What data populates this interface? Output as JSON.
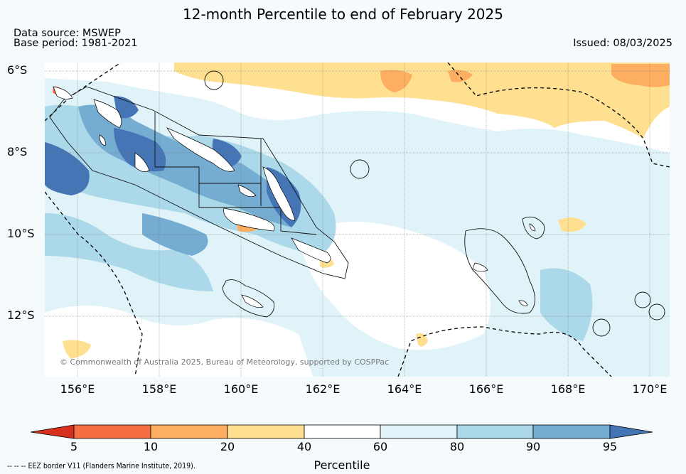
{
  "title": "12-month Percentile to end of February 2025",
  "data_source": "Data source: MSWEP",
  "base_period": "Base period: 1981-2021",
  "issued": "Issued: 08/03/2025",
  "copyright": "© Commonwealth of Australia 2025, Bureau of Meteorology, supported by COSPPac",
  "eez_note": "--  --  -- EEZ border V11 (Flanders Marine Institute, 2019).",
  "lat_labels": [
    "6°S",
    "8°S",
    "10°S",
    "12°S"
  ],
  "lon_labels": [
    "156°E",
    "158°E",
    "160°E",
    "162°E",
    "164°E",
    "166°E",
    "168°E",
    "170°E"
  ],
  "colorbar": {
    "title": "Percentile",
    "ticks": [
      "5",
      "10",
      "20",
      "40",
      "60",
      "80",
      "90",
      "95"
    ],
    "colors": {
      "below_5": "#d7301f",
      "5-10": "#f46d43",
      "10-20": "#fdae61",
      "20-40": "#fee090",
      "40-60": "#ffffff",
      "60-80": "#e0f3f8",
      "80-90": "#abd9e9",
      "90-95": "#74add1",
      "above_95": "#4575b4"
    }
  }
}
